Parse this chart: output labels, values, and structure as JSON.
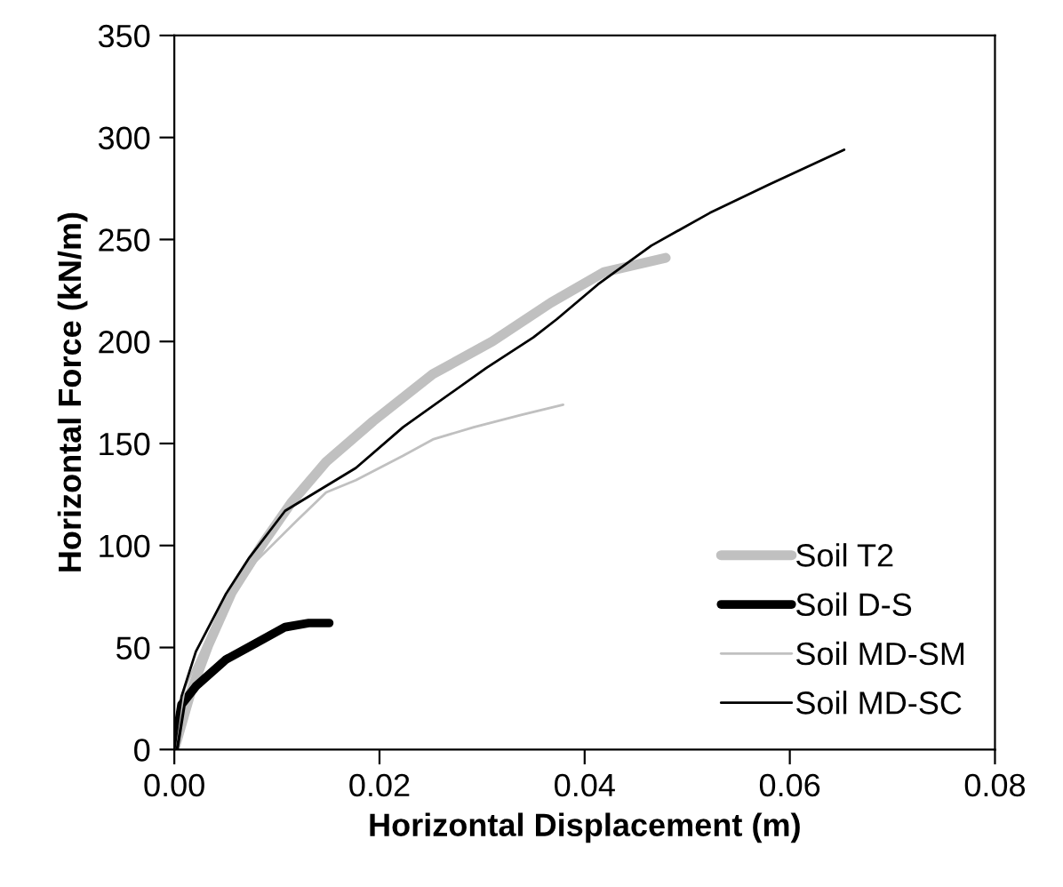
{
  "chart_data": {
    "type": "line",
    "xlabel": "Horizontal Displacement (m)",
    "ylabel": "Horizontal Force (kN/m)",
    "xlim": [
      0,
      0.08
    ],
    "xticks": [
      {
        "value": 0,
        "label": "0.00"
      },
      {
        "value": 0.02,
        "label": "0.02"
      },
      {
        "value": 0.04,
        "label": "0.04"
      },
      {
        "value": 0.06,
        "label": "0.06"
      },
      {
        "value": 0.08,
        "label": "0.08"
      }
    ],
    "ylim": [
      0,
      350
    ],
    "yticks": [
      0,
      50,
      100,
      150,
      200,
      250,
      300,
      350
    ],
    "grid": false,
    "legend": "bottom right",
    "marker": "none",
    "line_style": "solid",
    "series": [
      {
        "name": "Soil T2",
        "color": "#c0c0c0",
        "x": [
          0,
          0.0016,
          0.0033,
          0.0056,
          0.0085,
          0.0114,
          0.0148,
          0.0194,
          0.0252,
          0.031,
          0.0367,
          0.0419,
          0.0479
        ],
        "values": [
          0,
          28,
          51,
          77,
          100,
          121,
          141,
          161,
          184,
          200,
          219,
          234,
          241
        ]
      },
      {
        "name": "Soil D-S",
        "color": "#000000",
        "x": [
          0,
          0.0007,
          0.0021,
          0.005,
          0.0079,
          0.0108,
          0.0131,
          0.0151
        ],
        "values": [
          0,
          22,
          31,
          44,
          52,
          60,
          62,
          62
        ]
      },
      {
        "name": "Soil MD-SM",
        "color": "#c0c0c0",
        "x": [
          0,
          0.001,
          0.0039,
          0.0079,
          0.0119,
          0.0148,
          0.0177,
          0.0223,
          0.0252,
          0.0292,
          0.0338,
          0.0379
        ],
        "values": [
          0,
          30,
          62,
          92,
          112,
          126,
          132,
          144,
          152,
          158,
          164,
          169
        ]
      },
      {
        "name": "Soil MD-SC",
        "color": "#000000",
        "x": [
          0,
          0.0007,
          0.0021,
          0.005,
          0.0073,
          0.0108,
          0.0177,
          0.0223,
          0.0304,
          0.035,
          0.0373,
          0.0413,
          0.0465,
          0.0522,
          0.058,
          0.0653
        ],
        "values": [
          0,
          26,
          48,
          76,
          94,
          117,
          138,
          158,
          187,
          202,
          211,
          228,
          247,
          263,
          277,
          294
        ]
      }
    ]
  }
}
